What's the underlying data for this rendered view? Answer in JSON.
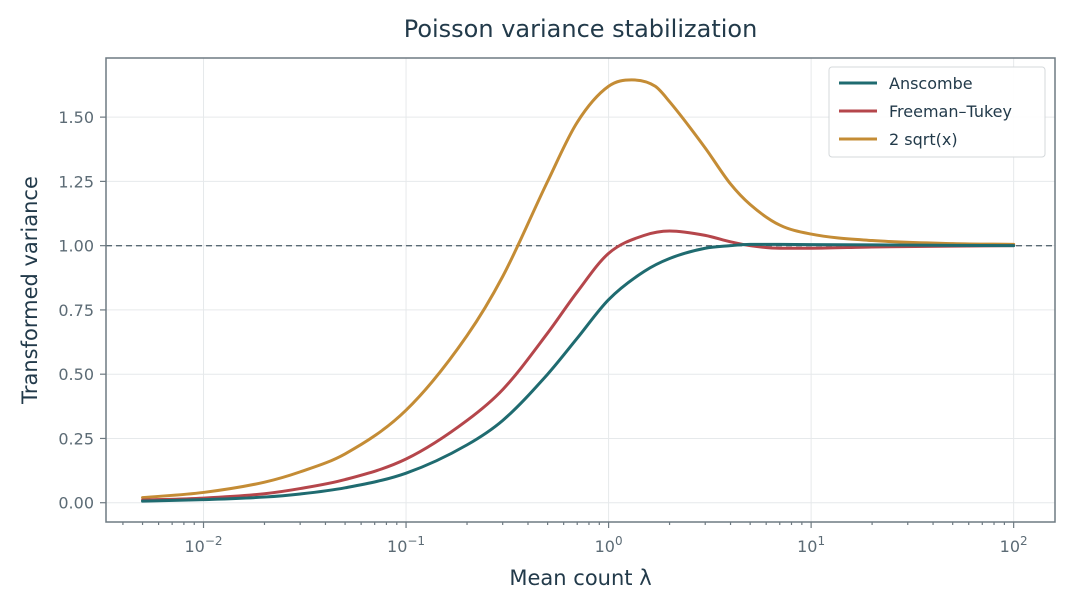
{
  "chart_data": {
    "type": "line",
    "title": "Poisson variance stabilization",
    "xlabel": "Mean count λ",
    "ylabel": "Transformed variance",
    "xscale": "log",
    "xlim": [
      0.0033,
      160
    ],
    "ylim": [
      -0.075,
      1.73
    ],
    "x_ticks": [
      {
        "value": 0.01,
        "base": "10",
        "exp": "−2"
      },
      {
        "value": 0.1,
        "base": "10",
        "exp": "−1"
      },
      {
        "value": 1,
        "base": "10",
        "exp": "0"
      },
      {
        "value": 10,
        "base": "10",
        "exp": "1"
      },
      {
        "value": 100,
        "base": "10",
        "exp": "2"
      }
    ],
    "y_ticks": [
      {
        "value": 0,
        "label": "0.00"
      },
      {
        "value": 0.25,
        "label": "0.25"
      },
      {
        "value": 0.5,
        "label": "0.50"
      },
      {
        "value": 0.75,
        "label": "0.75"
      },
      {
        "value": 1.0,
        "label": "1.00"
      },
      {
        "value": 1.25,
        "label": "1.25"
      },
      {
        "value": 1.5,
        "label": "1.50"
      }
    ],
    "grid": true,
    "legend_position": "top-right",
    "reference_line": {
      "y": 1.0,
      "style": "dashed",
      "color": "#5a6a74"
    },
    "series": [
      {
        "name": "Anscombe",
        "color": "#1f6b70",
        "x": [
          0.005,
          0.01,
          0.02,
          0.03,
          0.05,
          0.1,
          0.2,
          0.3,
          0.5,
          0.7,
          1.0,
          1.5,
          2.0,
          3.0,
          4.0,
          5.0,
          7.0,
          10,
          20,
          50,
          100
        ],
        "y": [
          0.006,
          0.012,
          0.022,
          0.034,
          0.058,
          0.115,
          0.225,
          0.32,
          0.5,
          0.64,
          0.79,
          0.9,
          0.95,
          0.99,
          1.0,
          1.005,
          1.005,
          1.004,
          1.003,
          1.001,
          1.0
        ]
      },
      {
        "name": "Freeman–Tukey",
        "color": "#b5464b",
        "x": [
          0.005,
          0.01,
          0.02,
          0.03,
          0.05,
          0.1,
          0.2,
          0.3,
          0.5,
          0.7,
          1.0,
          1.5,
          2.0,
          3.0,
          4.0,
          5.0,
          7.0,
          10,
          20,
          50,
          100
        ],
        "y": [
          0.01,
          0.018,
          0.035,
          0.055,
          0.09,
          0.17,
          0.32,
          0.44,
          0.66,
          0.82,
          0.97,
          1.04,
          1.057,
          1.04,
          1.015,
          1.0,
          0.99,
          0.99,
          0.995,
          0.998,
          1.0
        ]
      },
      {
        "name": "2 sqrt(x)",
        "color": "#c48c35",
        "x": [
          0.005,
          0.01,
          0.02,
          0.03,
          0.05,
          0.1,
          0.2,
          0.3,
          0.5,
          0.7,
          1.0,
          1.3,
          1.7,
          2.0,
          3.0,
          4.0,
          5.0,
          7.0,
          10,
          20,
          50,
          100
        ],
        "y": [
          0.02,
          0.04,
          0.08,
          0.12,
          0.19,
          0.36,
          0.65,
          0.88,
          1.25,
          1.48,
          1.62,
          1.645,
          1.62,
          1.56,
          1.38,
          1.24,
          1.16,
          1.08,
          1.045,
          1.02,
          1.008,
          1.005
        ]
      }
    ]
  }
}
